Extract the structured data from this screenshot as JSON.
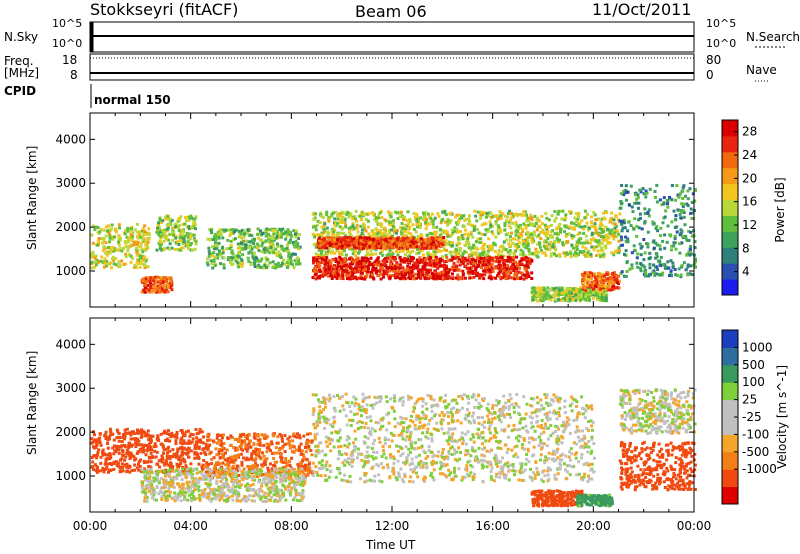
{
  "header": {
    "station": "Stokkseyri (fitACF)",
    "beam": "Beam 06",
    "date": "11/Oct/2011"
  },
  "top_panels": {
    "nsky_label": "N.Sky",
    "nsky_ticks_left": [
      "10^5",
      "10^0"
    ],
    "nsky_ticks_right": [
      "10^5",
      "10^0"
    ],
    "nsearch_label": "N.Search",
    "freq_label": "Freq.",
    "freq_unit": "[MHz]",
    "freq_ticks": [
      "18",
      "8"
    ],
    "nave_ticks": [
      "80",
      "0"
    ],
    "nave_label": "Nave",
    "cpid_label": "CPID",
    "cpid_value": "normal 150"
  },
  "colors": {
    "power_scale": [
      "#1c1cf0",
      "#2a4fb0",
      "#2f7f7a",
      "#3da35c",
      "#5fbf3a",
      "#b9d83a",
      "#f2c61e",
      "#f59a17",
      "#f26a10",
      "#e82512",
      "#d90000"
    ],
    "velocity_scale": [
      "#e00000",
      "#f04a10",
      "#f47f17",
      "#f5a52a",
      "#c0c0c0",
      "#c0c0c0",
      "#7fcf3a",
      "#3a9a5e",
      "#2f6fa0",
      "#1c3fc0"
    ]
  },
  "chart_data": [
    {
      "type": "heatmap",
      "ylabel": "Slant Range [km]",
      "xlabel": "",
      "y_ticks": [
        "1000",
        "2000",
        "3000",
        "4000"
      ],
      "yrange_km": [
        180,
        4600
      ],
      "x_ticks": [
        "00:00",
        "04:00",
        "08:00",
        "12:00",
        "16:00",
        "20:00",
        "00:00"
      ],
      "xrange_hours": [
        0,
        24
      ],
      "colorbar": {
        "label": "Power [dB]",
        "ticks": [
          "4",
          "8",
          "12",
          "16",
          "20",
          "24",
          "28"
        ],
        "range": [
          0,
          30
        ]
      },
      "features": [
        {
          "t0": 0.0,
          "t1": 2.3,
          "r0": 1100,
          "r1": 2100,
          "value": 16
        },
        {
          "t0": 2.6,
          "t1": 4.2,
          "r0": 1500,
          "r1": 2300,
          "value": 14
        },
        {
          "t0": 2.0,
          "t1": 3.2,
          "r0": 550,
          "r1": 900,
          "value": 25
        },
        {
          "t0": 4.6,
          "t1": 8.3,
          "r0": 1100,
          "r1": 2000,
          "value": 12
        },
        {
          "t0": 8.8,
          "t1": 21.0,
          "r0": 1350,
          "r1": 2400,
          "value": 15
        },
        {
          "t0": 8.8,
          "t1": 17.5,
          "r0": 850,
          "r1": 1350,
          "value": 28
        },
        {
          "t0": 9.0,
          "t1": 14.0,
          "r0": 1550,
          "r1": 1800,
          "value": 26
        },
        {
          "t0": 17.5,
          "t1": 20.5,
          "r0": 350,
          "r1": 650,
          "value": 14
        },
        {
          "t0": 19.5,
          "t1": 21.0,
          "r0": 600,
          "r1": 1000,
          "value": 24
        },
        {
          "t0": 21.0,
          "t1": 24.0,
          "r0": 900,
          "r1": 3000,
          "value": 8
        }
      ]
    },
    {
      "type": "heatmap",
      "ylabel": "Slant Range [km]",
      "xlabel": "Time UT",
      "y_ticks": [
        "1000",
        "2000",
        "3000",
        "4000"
      ],
      "yrange_km": [
        180,
        4600
      ],
      "x_ticks": [
        "00:00",
        "04:00",
        "08:00",
        "12:00",
        "16:00",
        "20:00",
        "00:00"
      ],
      "xrange_hours": [
        0,
        24
      ],
      "colorbar": {
        "label": "Velocity [m s^-1]",
        "ticks": [
          "1000",
          "500",
          "100",
          "25",
          "-25",
          "-100",
          "-500",
          "-1000"
        ],
        "range": [
          -1000,
          1000
        ]
      },
      "features": [
        {
          "t0": 0.0,
          "t1": 4.5,
          "r0": 1100,
          "r1": 2100,
          "value": -400
        },
        {
          "t0": 4.5,
          "t1": 8.8,
          "r0": 1000,
          "r1": 2000,
          "value": -300
        },
        {
          "t0": 2.0,
          "t1": 8.5,
          "r0": 450,
          "r1": 1200,
          "value": 0
        },
        {
          "t0": 8.8,
          "t1": 20.0,
          "r0": 900,
          "r1": 2900,
          "value": 0
        },
        {
          "t0": 17.5,
          "t1": 19.5,
          "r0": 350,
          "r1": 700,
          "value": -400
        },
        {
          "t0": 19.3,
          "t1": 20.7,
          "r0": 350,
          "r1": 600,
          "value": 150
        },
        {
          "t0": 21.0,
          "t1": 24.0,
          "r0": 700,
          "r1": 1800,
          "value": -500
        },
        {
          "t0": 21.0,
          "t1": 24.0,
          "r0": 2000,
          "r1": 3000,
          "value": 0
        }
      ]
    }
  ]
}
